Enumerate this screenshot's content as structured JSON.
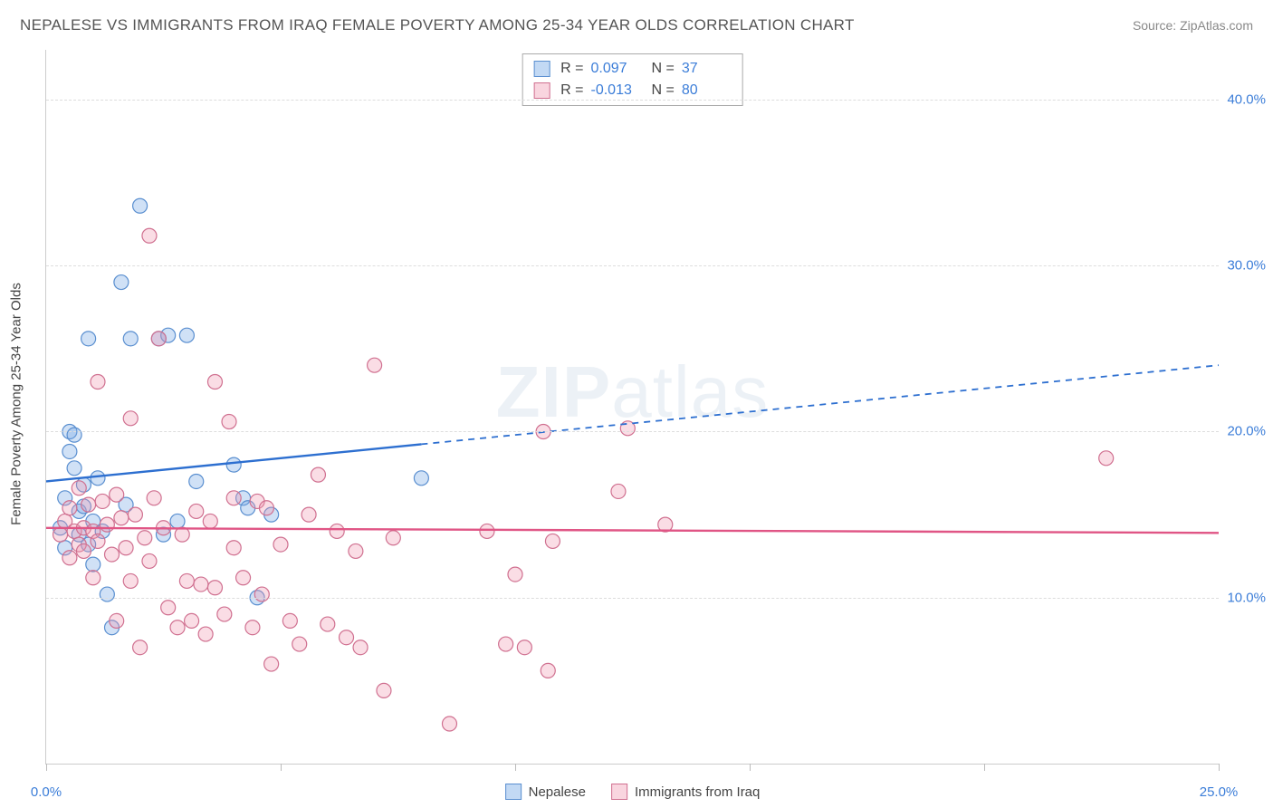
{
  "title": "NEPALESE VS IMMIGRANTS FROM IRAQ FEMALE POVERTY AMONG 25-34 YEAR OLDS CORRELATION CHART",
  "source": "Source: ZipAtlas.com",
  "y_axis_label": "Female Poverty Among 25-34 Year Olds",
  "watermark_bold": "ZIP",
  "watermark_rest": "atlas",
  "chart": {
    "type": "scatter",
    "xlim": [
      0,
      25
    ],
    "ylim": [
      0,
      43
    ],
    "x_ticks": [
      0,
      5,
      10,
      15,
      20,
      25
    ],
    "x_tick_labels": [
      "0.0%",
      "",
      "",
      "",
      "",
      "25.0%"
    ],
    "y_ticks": [
      10,
      20,
      30,
      40
    ],
    "y_tick_labels": [
      "10.0%",
      "20.0%",
      "30.0%",
      "40.0%"
    ],
    "background_color": "#ffffff",
    "grid_color": "#dddddd",
    "tick_color": "#3b7dd8",
    "marker_radius": 8,
    "marker_stroke_width": 1.2,
    "series": [
      {
        "name": "Nepalese",
        "fill": "rgba(120,170,230,0.35)",
        "stroke": "#5a8fd0",
        "R": "0.097",
        "N": "37",
        "trend": {
          "y_at_x0": 17.0,
          "y_at_xmax": 24.0,
          "solid_until_x": 8.0,
          "color": "#2d6fd0",
          "width": 2.4
        },
        "points": [
          [
            0.3,
            14.2
          ],
          [
            0.4,
            16.0
          ],
          [
            0.4,
            13.0
          ],
          [
            0.5,
            20.0
          ],
          [
            0.5,
            18.8
          ],
          [
            0.6,
            17.8
          ],
          [
            0.6,
            19.8
          ],
          [
            0.7,
            15.2
          ],
          [
            0.7,
            13.8
          ],
          [
            0.8,
            16.8
          ],
          [
            0.8,
            15.5
          ],
          [
            0.9,
            13.2
          ],
          [
            0.9,
            25.6
          ],
          [
            1.0,
            14.6
          ],
          [
            1.0,
            12.0
          ],
          [
            1.1,
            17.2
          ],
          [
            1.2,
            14.0
          ],
          [
            1.3,
            10.2
          ],
          [
            1.4,
            8.2
          ],
          [
            1.6,
            29.0
          ],
          [
            1.7,
            15.6
          ],
          [
            1.8,
            25.6
          ],
          [
            2.0,
            33.6
          ],
          [
            2.4,
            25.6
          ],
          [
            2.5,
            13.8
          ],
          [
            2.6,
            25.8
          ],
          [
            2.8,
            14.6
          ],
          [
            3.0,
            25.8
          ],
          [
            3.2,
            17.0
          ],
          [
            4.0,
            18.0
          ],
          [
            4.2,
            16.0
          ],
          [
            4.3,
            15.4
          ],
          [
            4.5,
            10.0
          ],
          [
            4.8,
            15.0
          ],
          [
            8.0,
            17.2
          ]
        ]
      },
      {
        "name": "Immigrants from Iraq",
        "fill": "rgba(240,150,175,0.32)",
        "stroke": "#d07090",
        "R": "-0.013",
        "N": "80",
        "trend": {
          "y_at_x0": 14.2,
          "y_at_xmax": 13.9,
          "solid_until_x": 25.0,
          "color": "#e05585",
          "width": 2.4
        },
        "points": [
          [
            0.3,
            13.8
          ],
          [
            0.4,
            14.6
          ],
          [
            0.5,
            12.4
          ],
          [
            0.5,
            15.4
          ],
          [
            0.6,
            14.0
          ],
          [
            0.7,
            13.2
          ],
          [
            0.7,
            16.6
          ],
          [
            0.8,
            14.2
          ],
          [
            0.8,
            12.8
          ],
          [
            0.9,
            15.6
          ],
          [
            1.0,
            14.0
          ],
          [
            1.0,
            11.2
          ],
          [
            1.1,
            23.0
          ],
          [
            1.1,
            13.4
          ],
          [
            1.2,
            15.8
          ],
          [
            1.3,
            14.4
          ],
          [
            1.4,
            12.6
          ],
          [
            1.5,
            16.2
          ],
          [
            1.5,
            8.6
          ],
          [
            1.6,
            14.8
          ],
          [
            1.7,
            13.0
          ],
          [
            1.8,
            11.0
          ],
          [
            1.8,
            20.8
          ],
          [
            1.9,
            15.0
          ],
          [
            2.0,
            7.0
          ],
          [
            2.1,
            13.6
          ],
          [
            2.2,
            31.8
          ],
          [
            2.2,
            12.2
          ],
          [
            2.3,
            16.0
          ],
          [
            2.4,
            25.6
          ],
          [
            2.5,
            14.2
          ],
          [
            2.6,
            9.4
          ],
          [
            2.8,
            8.2
          ],
          [
            2.9,
            13.8
          ],
          [
            3.0,
            11.0
          ],
          [
            3.1,
            8.6
          ],
          [
            3.2,
            15.2
          ],
          [
            3.3,
            10.8
          ],
          [
            3.4,
            7.8
          ],
          [
            3.5,
            14.6
          ],
          [
            3.6,
            10.6
          ],
          [
            3.6,
            23.0
          ],
          [
            3.8,
            9.0
          ],
          [
            3.9,
            20.6
          ],
          [
            4.0,
            13.0
          ],
          [
            4.0,
            16.0
          ],
          [
            4.2,
            11.2
          ],
          [
            4.4,
            8.2
          ],
          [
            4.5,
            15.8
          ],
          [
            4.6,
            10.2
          ],
          [
            4.7,
            15.4
          ],
          [
            4.8,
            6.0
          ],
          [
            5.0,
            13.2
          ],
          [
            5.2,
            8.6
          ],
          [
            5.4,
            7.2
          ],
          [
            5.6,
            15.0
          ],
          [
            5.8,
            17.4
          ],
          [
            6.0,
            8.4
          ],
          [
            6.2,
            14.0
          ],
          [
            6.4,
            7.6
          ],
          [
            6.6,
            12.8
          ],
          [
            6.7,
            7.0
          ],
          [
            7.0,
            24.0
          ],
          [
            7.2,
            4.4
          ],
          [
            7.4,
            13.6
          ],
          [
            8.6,
            2.4
          ],
          [
            9.4,
            14.0
          ],
          [
            9.8,
            7.2
          ],
          [
            10.0,
            11.4
          ],
          [
            10.2,
            7.0
          ],
          [
            10.6,
            20.0
          ],
          [
            10.7,
            5.6
          ],
          [
            10.8,
            13.4
          ],
          [
            12.2,
            16.4
          ],
          [
            12.4,
            20.2
          ],
          [
            13.2,
            14.4
          ],
          [
            22.6,
            18.4
          ]
        ]
      }
    ]
  },
  "legend": {
    "series1": "Nepalese",
    "series2": "Immigrants from Iraq"
  }
}
